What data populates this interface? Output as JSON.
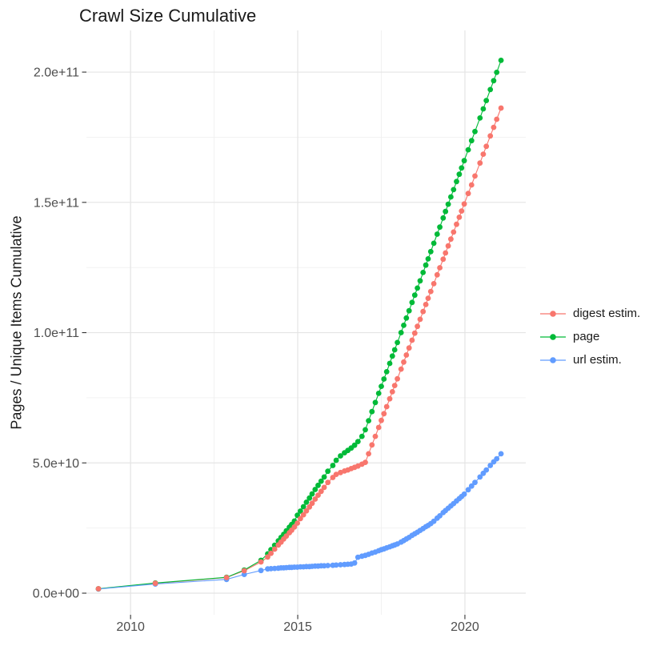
{
  "title": "Crawl Size Cumulative",
  "y_axis": {
    "label": "Pages / Unique Items Cumulative",
    "ticks": [
      "0.0e+00",
      "5.0e+10",
      "1.0e+11",
      "1.5e+11",
      "2.0e+11"
    ],
    "tick_values_e9": [
      0,
      50,
      100,
      150,
      200
    ]
  },
  "x_axis": {
    "ticks": [
      "2010",
      "2015",
      "2020"
    ],
    "tick_values": [
      2010,
      2015,
      2020
    ]
  },
  "legend": {
    "items": [
      {
        "label": "digest estim.",
        "color": "#F8766D"
      },
      {
        "label": "page",
        "color": "#00BA38"
      },
      {
        "label": "url estim.",
        "color": "#619CFF"
      }
    ]
  },
  "colors": {
    "grid_major": "#E4E4E4",
    "grid_minor": "#F0F0F0",
    "tick_mark": "#333333",
    "tick_label": "#4D4D4D",
    "text": "#1a1a1a"
  },
  "chart_data": {
    "type": "line",
    "title": "Crawl Size Cumulative",
    "xlabel": "",
    "ylabel": "Pages / Unique Items Cumulative",
    "y_unit": "1e9 (values below are billions of pages / unique items, cumulative)",
    "xlim": [
      2008.68,
      2021.82
    ],
    "ylim_e9": [
      -8.29,
      216.0
    ],
    "x_major": [
      2010,
      2015,
      2020
    ],
    "x_minor": [
      2012.5,
      2017.5
    ],
    "y_major_e9": [
      0,
      50,
      100,
      150,
      200
    ],
    "y_minor_e9": [
      25,
      75,
      125,
      175
    ],
    "grid": true,
    "legend_position": "right",
    "x": [
      2009.04,
      2010.74,
      2012.87,
      2013.4,
      2013.9,
      2014.1,
      2014.2,
      2014.31,
      2014.42,
      2014.5,
      2014.58,
      2014.66,
      2014.75,
      2014.82,
      2014.9,
      2014.99,
      2015.08,
      2015.17,
      2015.26,
      2015.35,
      2015.43,
      2015.52,
      2015.61,
      2015.7,
      2015.79,
      2015.9,
      2016.05,
      2016.15,
      2016.28,
      2016.4,
      2016.5,
      2016.6,
      2016.7,
      2016.8,
      2016.92,
      2017.02,
      2017.12,
      2017.22,
      2017.32,
      2017.42,
      2017.5,
      2017.58,
      2017.66,
      2017.75,
      2017.83,
      2017.9,
      2017.98,
      2018.09,
      2018.17,
      2018.25,
      2018.33,
      2018.42,
      2018.5,
      2018.58,
      2018.66,
      2018.75,
      2018.83,
      2018.9,
      2018.98,
      2019.07,
      2019.17,
      2019.25,
      2019.35,
      2019.42,
      2019.5,
      2019.58,
      2019.66,
      2019.75,
      2019.83,
      2019.9,
      2019.98,
      2020.1,
      2020.2,
      2020.3,
      2020.45,
      2020.55,
      2020.64,
      2020.76,
      2020.86,
      2020.95,
      2021.08
    ],
    "series": [
      {
        "name": "digest estim.",
        "color": "#F8766D",
        "values_e9": [
          1.7,
          3.8,
          6.0,
          8.6,
          12.0,
          13.9,
          15.3,
          16.9,
          18.5,
          19.6,
          20.8,
          21.9,
          23.2,
          24.2,
          25.4,
          26.9,
          28.6,
          30.1,
          31.6,
          33.1,
          34.5,
          36.1,
          37.6,
          39.1,
          40.6,
          42.5,
          44.4,
          45.6,
          46.3,
          46.9,
          47.3,
          47.8,
          48.3,
          48.8,
          49.5,
          50.2,
          53.5,
          56.9,
          60.2,
          63.6,
          66.3,
          68.9,
          71.6,
          74.6,
          77.3,
          79.7,
          82.3,
          86.0,
          88.7,
          91.4,
          94.1,
          97.1,
          99.8,
          102.4,
          105.1,
          108.1,
          110.8,
          113.2,
          115.8,
          118.8,
          122.2,
          124.9,
          128.2,
          130.6,
          133.3,
          135.9,
          138.6,
          141.6,
          144.3,
          146.7,
          149.4,
          153.4,
          156.7,
          160.1,
          165.1,
          168.5,
          171.5,
          175.5,
          178.8,
          181.9,
          186.2
        ]
      },
      {
        "name": "page",
        "color": "#00BA38",
        "values_e9": [
          1.7,
          3.9,
          6.1,
          8.9,
          12.6,
          15.1,
          16.7,
          18.4,
          20.1,
          21.4,
          22.6,
          23.9,
          25.3,
          26.4,
          27.7,
          29.9,
          31.5,
          33.2,
          34.9,
          36.5,
          38.1,
          39.8,
          41.4,
          43.0,
          44.6,
          46.8,
          49.0,
          51.0,
          52.7,
          53.9,
          54.8,
          55.7,
          56.8,
          58.2,
          60.2,
          62.7,
          66.2,
          69.7,
          73.2,
          76.7,
          79.4,
          82.2,
          85.0,
          88.2,
          91.0,
          93.4,
          96.2,
          100.0,
          102.8,
          105.6,
          108.4,
          111.6,
          114.4,
          117.1,
          119.9,
          123.1,
          125.9,
          128.3,
          131.1,
          134.3,
          137.8,
          140.5,
          144.0,
          146.5,
          149.3,
          152.1,
          154.9,
          158.0,
          160.8,
          163.2,
          166.0,
          170.2,
          173.7,
          177.2,
          182.4,
          185.9,
          189.1,
          193.3,
          196.7,
          199.9,
          204.5
        ]
      },
      {
        "name": "url estim.",
        "color": "#619CFF",
        "values_e9": [
          1.6,
          3.5,
          5.3,
          7.2,
          8.7,
          9.3,
          9.4,
          9.5,
          9.6,
          9.7,
          9.7,
          9.8,
          9.9,
          9.9,
          10.0,
          10.0,
          10.1,
          10.1,
          10.2,
          10.2,
          10.3,
          10.4,
          10.4,
          10.5,
          10.5,
          10.6,
          10.7,
          10.8,
          10.9,
          11.0,
          11.1,
          11.2,
          11.6,
          13.8,
          14.2,
          14.5,
          14.9,
          15.4,
          15.8,
          16.3,
          16.7,
          17.0,
          17.4,
          17.8,
          18.2,
          18.5,
          18.9,
          19.6,
          20.2,
          20.8,
          21.4,
          22.2,
          22.8,
          23.4,
          24.1,
          24.8,
          25.5,
          26.0,
          26.7,
          27.6,
          28.8,
          29.7,
          30.9,
          31.7,
          32.6,
          33.5,
          34.4,
          35.4,
          36.3,
          37.1,
          38.0,
          39.7,
          41.1,
          42.5,
          44.6,
          46.0,
          47.3,
          49.0,
          50.4,
          51.6,
          53.5
        ]
      }
    ]
  }
}
